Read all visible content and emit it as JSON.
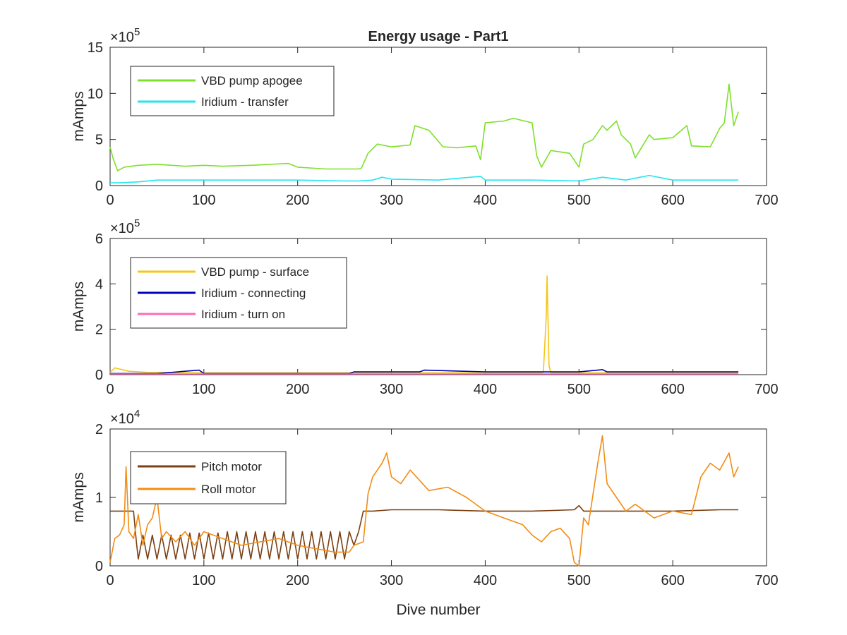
{
  "chart_data": [
    {
      "type": "line",
      "title": "Energy usage - Part1",
      "xlabel": "",
      "ylabel": "mAmps",
      "exponent_base": "×10",
      "exponent_power": "5",
      "xlim": [
        0,
        700
      ],
      "ylim": [
        0,
        15
      ],
      "xticks": [
        0,
        100,
        200,
        300,
        400,
        500,
        600,
        700
      ],
      "yticks": [
        0,
        5,
        10,
        15
      ],
      "legend_position": "top-left",
      "grid": false,
      "series": [
        {
          "name": "VBD pump apogee",
          "color": "#7ee02c",
          "x": [
            0,
            3,
            8,
            15,
            30,
            50,
            80,
            100,
            120,
            150,
            190,
            200,
            230,
            265,
            268,
            275,
            285,
            300,
            320,
            325,
            340,
            355,
            370,
            390,
            395,
            400,
            420,
            430,
            450,
            455,
            460,
            470,
            490,
            500,
            505,
            515,
            525,
            530,
            540,
            545,
            555,
            560,
            575,
            580,
            600,
            615,
            620,
            640,
            650,
            655,
            660,
            665,
            670
          ],
          "y": [
            4.2,
            3.0,
            1.6,
            2.0,
            2.2,
            2.3,
            2.1,
            2.2,
            2.1,
            2.2,
            2.4,
            2.0,
            1.8,
            1.8,
            1.9,
            3.5,
            4.5,
            4.2,
            4.4,
            6.5,
            6.0,
            4.2,
            4.1,
            4.3,
            2.8,
            6.8,
            7.0,
            7.3,
            6.8,
            3.2,
            2.0,
            3.8,
            3.5,
            2.0,
            4.5,
            5.0,
            6.5,
            6.0,
            7.0,
            5.5,
            4.5,
            3.0,
            5.5,
            5.0,
            5.2,
            6.5,
            4.3,
            4.2,
            6.2,
            6.8,
            11.0,
            6.5,
            8.0
          ]
        },
        {
          "name": "Iridium - transfer",
          "color": "#22e6f2",
          "x": [
            0,
            10,
            30,
            50,
            100,
            150,
            200,
            250,
            265,
            280,
            290,
            300,
            350,
            395,
            400,
            450,
            500,
            525,
            550,
            575,
            600,
            650,
            670
          ],
          "y": [
            0.3,
            0.3,
            0.4,
            0.6,
            0.6,
            0.6,
            0.6,
            0.5,
            0.5,
            0.6,
            0.9,
            0.7,
            0.6,
            1.0,
            0.6,
            0.6,
            0.5,
            0.9,
            0.6,
            1.1,
            0.6,
            0.6,
            0.6
          ]
        }
      ]
    },
    {
      "type": "line",
      "title": "",
      "xlabel": "",
      "ylabel": "mAmps",
      "exponent_base": "×10",
      "exponent_power": "5",
      "xlim": [
        0,
        700
      ],
      "ylim": [
        0,
        6
      ],
      "xticks": [
        0,
        100,
        200,
        300,
        400,
        500,
        600,
        700
      ],
      "yticks": [
        0,
        2,
        4,
        6
      ],
      "legend_position": "top-left",
      "grid": false,
      "series": [
        {
          "name": "VBD pump - surface",
          "color": "#f5c518",
          "x": [
            0,
            5,
            10,
            20,
            40,
            100,
            200,
            300,
            400,
            460,
            462,
            465,
            466,
            468,
            470,
            500,
            600,
            670
          ],
          "y": [
            0.1,
            0.3,
            0.25,
            0.15,
            0.1,
            0.08,
            0.08,
            0.08,
            0.08,
            0.08,
            0.1,
            2.5,
            4.35,
            0.4,
            0.08,
            0.08,
            0.08,
            0.08
          ]
        },
        {
          "name": "Iridium - connecting",
          "color": "#0000b4",
          "x": [
            0,
            50,
            95,
            100,
            200,
            255,
            260,
            330,
            335,
            400,
            450,
            500,
            525,
            530,
            600,
            670
          ],
          "y": [
            0.05,
            0.05,
            0.2,
            0.05,
            0.05,
            0.05,
            0.12,
            0.12,
            0.2,
            0.12,
            0.12,
            0.12,
            0.22,
            0.12,
            0.12,
            0.12
          ]
        },
        {
          "name": "Iridium - turn on",
          "color": "#ff69b4",
          "x": [
            0,
            100,
            200,
            300,
            400,
            500,
            600,
            670
          ],
          "y": [
            0.03,
            0.03,
            0.03,
            0.03,
            0.03,
            0.03,
            0.03,
            0.03
          ]
        }
      ]
    },
    {
      "type": "line",
      "title": "",
      "xlabel": "Dive number",
      "ylabel": "mAmps",
      "exponent_base": "×10",
      "exponent_power": "4",
      "xlim": [
        0,
        700
      ],
      "ylim": [
        0,
        2
      ],
      "xticks": [
        0,
        100,
        200,
        300,
        400,
        500,
        600,
        700
      ],
      "yticks": [
        0,
        1,
        2
      ],
      "legend_position": "top-left",
      "grid": false,
      "series": [
        {
          "name": "Pitch motor",
          "color": "#7b3f12",
          "x": [
            0,
            25,
            28,
            30,
            35,
            40,
            45,
            50,
            55,
            60,
            65,
            70,
            75,
            80,
            85,
            90,
            95,
            100,
            105,
            110,
            115,
            120,
            125,
            130,
            135,
            140,
            145,
            150,
            155,
            160,
            165,
            170,
            175,
            180,
            185,
            190,
            195,
            200,
            205,
            210,
            215,
            220,
            225,
            230,
            235,
            240,
            245,
            250,
            255,
            260,
            265,
            270,
            280,
            300,
            350,
            400,
            450,
            495,
            500,
            505,
            550,
            600,
            650,
            670
          ],
          "y": [
            0.8,
            0.8,
            0.35,
            0.1,
            0.45,
            0.1,
            0.45,
            0.1,
            0.45,
            0.1,
            0.45,
            0.1,
            0.45,
            0.1,
            0.48,
            0.1,
            0.48,
            0.1,
            0.48,
            0.1,
            0.48,
            0.1,
            0.5,
            0.1,
            0.5,
            0.1,
            0.5,
            0.1,
            0.5,
            0.1,
            0.5,
            0.1,
            0.5,
            0.1,
            0.5,
            0.1,
            0.5,
            0.1,
            0.5,
            0.1,
            0.5,
            0.1,
            0.5,
            0.1,
            0.5,
            0.1,
            0.5,
            0.1,
            0.5,
            0.3,
            0.5,
            0.8,
            0.8,
            0.82,
            0.82,
            0.8,
            0.8,
            0.82,
            0.88,
            0.8,
            0.8,
            0.8,
            0.82,
            0.82
          ]
        },
        {
          "name": "Roll motor",
          "color": "#f28c14",
          "x": [
            0,
            5,
            10,
            15,
            17,
            20,
            25,
            30,
            35,
            40,
            45,
            50,
            55,
            60,
            70,
            80,
            90,
            100,
            120,
            140,
            160,
            180,
            200,
            220,
            240,
            255,
            260,
            270,
            275,
            280,
            290,
            295,
            300,
            310,
            320,
            340,
            360,
            380,
            400,
            420,
            440,
            450,
            460,
            470,
            480,
            490,
            495,
            500,
            505,
            510,
            520,
            525,
            530,
            540,
            550,
            560,
            580,
            600,
            620,
            630,
            640,
            650,
            660,
            665,
            670
          ],
          "y": [
            0.05,
            0.4,
            0.45,
            0.6,
            1.45,
            0.5,
            0.4,
            0.75,
            0.3,
            0.6,
            0.7,
            1.0,
            0.4,
            0.5,
            0.35,
            0.5,
            0.3,
            0.5,
            0.4,
            0.3,
            0.35,
            0.4,
            0.3,
            0.25,
            0.2,
            0.2,
            0.3,
            0.35,
            1.05,
            1.3,
            1.5,
            1.65,
            1.3,
            1.2,
            1.4,
            1.1,
            1.15,
            1.0,
            0.8,
            0.7,
            0.6,
            0.45,
            0.35,
            0.5,
            0.55,
            0.4,
            0.05,
            0.0,
            0.7,
            0.6,
            1.5,
            1.9,
            1.2,
            1.0,
            0.8,
            0.9,
            0.7,
            0.8,
            0.75,
            1.3,
            1.5,
            1.4,
            1.65,
            1.3,
            1.45
          ]
        }
      ]
    }
  ]
}
